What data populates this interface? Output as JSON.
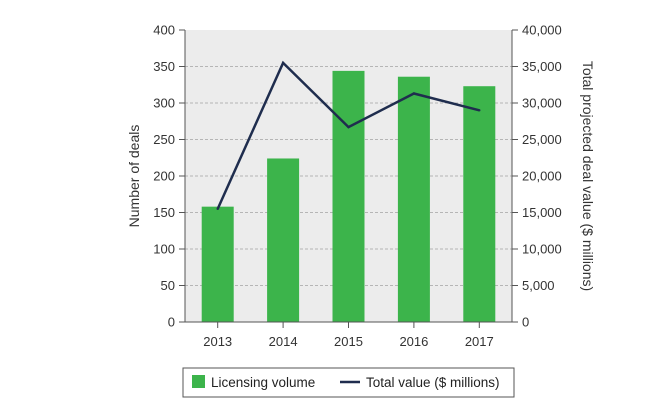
{
  "chart_data": {
    "type": "bar",
    "categories": [
      "2013",
      "2014",
      "2015",
      "2016",
      "2017"
    ],
    "series": [
      {
        "name": "Licensing volume",
        "type": "bar",
        "axis": "left",
        "values": [
          158,
          224,
          344,
          336,
          323
        ]
      },
      {
        "name": "Total value ($ millions)",
        "type": "line",
        "axis": "right",
        "values": [
          15500,
          35500,
          26700,
          31300,
          29000
        ]
      }
    ],
    "ylabel": "Number of deals",
    "y2label": "Total projected deal value ($ millions)",
    "ylim": [
      0,
      400
    ],
    "y2lim": [
      0,
      40000
    ],
    "yticks": [
      "0",
      "50",
      "100",
      "150",
      "200",
      "250",
      "300",
      "350",
      "400"
    ],
    "y2ticks": [
      "0",
      "5,000",
      "10,000",
      "15,000",
      "20,000",
      "25,000",
      "30,000",
      "35,000",
      "40,000"
    ],
    "grid": true,
    "legend": "bottom",
    "colors": {
      "bar": "#3cb44b",
      "line": "#1f2d4e",
      "plot_bg": "#ececec",
      "grid": "#b5b5b5",
      "axis": "#555555"
    }
  }
}
